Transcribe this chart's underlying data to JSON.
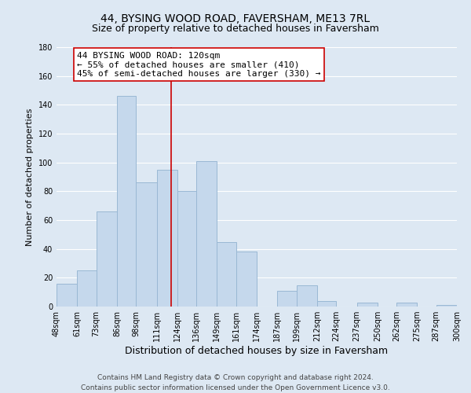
{
  "title": "44, BYSING WOOD ROAD, FAVERSHAM, ME13 7RL",
  "subtitle": "Size of property relative to detached houses in Faversham",
  "xlabel": "Distribution of detached houses by size in Faversham",
  "ylabel": "Number of detached properties",
  "bin_edges": [
    48,
    61,
    73,
    86,
    98,
    111,
    124,
    136,
    149,
    161,
    174,
    187,
    199,
    212,
    224,
    237,
    250,
    262,
    275,
    287,
    300
  ],
  "bin_labels": [
    "48sqm",
    "61sqm",
    "73sqm",
    "86sqm",
    "98sqm",
    "111sqm",
    "124sqm",
    "136sqm",
    "149sqm",
    "161sqm",
    "174sqm",
    "187sqm",
    "199sqm",
    "212sqm",
    "224sqm",
    "237sqm",
    "250sqm",
    "262sqm",
    "275sqm",
    "287sqm",
    "300sqm"
  ],
  "counts": [
    16,
    25,
    66,
    146,
    86,
    95,
    80,
    101,
    45,
    38,
    0,
    11,
    15,
    4,
    0,
    3,
    0,
    3,
    0,
    1
  ],
  "bar_color": "#c5d8ec",
  "bar_edge_color": "#9ab8d4",
  "property_size": 120,
  "vline_color": "#cc0000",
  "annotation_line1": "44 BYSING WOOD ROAD: 120sqm",
  "annotation_line2": "← 55% of detached houses are smaller (410)",
  "annotation_line3": "45% of semi-detached houses are larger (330) →",
  "annotation_box_edge": "#cc0000",
  "annotation_box_bg": "#ffffff",
  "ylim": [
    0,
    180
  ],
  "yticks": [
    0,
    20,
    40,
    60,
    80,
    100,
    120,
    140,
    160,
    180
  ],
  "footer_line1": "Contains HM Land Registry data © Crown copyright and database right 2024.",
  "footer_line2": "Contains public sector information licensed under the Open Government Licence v3.0.",
  "background_color": "#dde8f3",
  "plot_bg_color": "#dde8f3",
  "grid_color": "#ffffff",
  "title_fontsize": 10,
  "subtitle_fontsize": 9,
  "xlabel_fontsize": 9,
  "ylabel_fontsize": 8,
  "tick_fontsize": 7,
  "footer_fontsize": 6.5,
  "annotation_fontsize": 8
}
